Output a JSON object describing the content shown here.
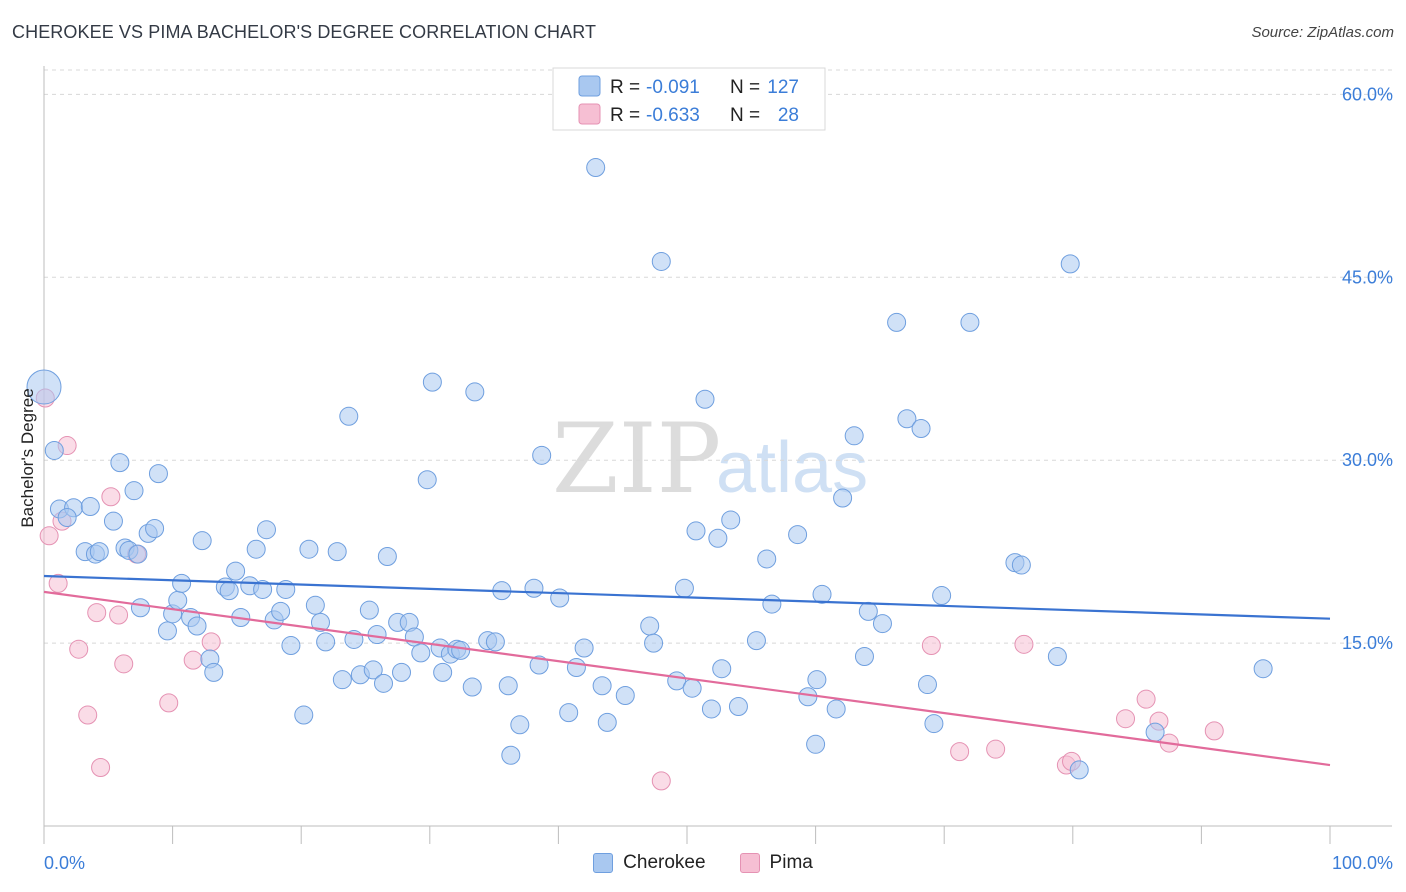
{
  "header": {
    "title": "CHEROKEE VS PIMA BACHELOR'S DEGREE CORRELATION CHART",
    "source": "Source: ZipAtlas.com"
  },
  "legend": {
    "r_label": "R =",
    "n_label": "N =",
    "cherokee": {
      "r": "-0.091",
      "n": "127"
    },
    "pima": {
      "r": "-0.633",
      "n": "28"
    }
  },
  "bottom_legend": {
    "cherokee": "Cherokee",
    "pima": "Pima"
  },
  "colors": {
    "cherokee": "#3a73d1",
    "pima": "#e26b9b",
    "cherokee_fill": "#a9c8f0",
    "pima_fill": "#f6bfd3",
    "tick": "#3b7dd8"
  },
  "watermark": {
    "zip": "ZIP",
    "atlas": "atlas"
  },
  "chart_data": {
    "type": "scatter",
    "title": "CHEROKEE VS PIMA BACHELOR'S DEGREE CORRELATION CHART",
    "xlabel": "",
    "ylabel": "Bachelor's Degree",
    "xlim": [
      0,
      100
    ],
    "ylim": [
      0,
      62
    ],
    "x_tick_labels": [
      "0.0%",
      "100.0%"
    ],
    "y_ticks": [
      15,
      30,
      45,
      60
    ],
    "y_tick_labels": [
      "15.0%",
      "30.0%",
      "45.0%",
      "60.0%"
    ],
    "grid": "horizontal dashed",
    "series": [
      {
        "name": "Cherokee",
        "trend": {
          "x": [
            0,
            100
          ],
          "y": [
            20.5,
            17.0
          ]
        },
        "points": [
          [
            0,
            36,
            "large"
          ],
          [
            0.8,
            30.8
          ],
          [
            1.2,
            26.0
          ],
          [
            2.3,
            26.1
          ],
          [
            1.8,
            25.3
          ],
          [
            3.6,
            26.2
          ],
          [
            3.2,
            22.5
          ],
          [
            4.0,
            22.3
          ],
          [
            4.3,
            22.5
          ],
          [
            5.4,
            25.0
          ],
          [
            5.9,
            29.8
          ],
          [
            7.0,
            27.5
          ],
          [
            6.3,
            22.8
          ],
          [
            6.6,
            22.6
          ],
          [
            8.1,
            24.0
          ],
          [
            8.6,
            24.4
          ],
          [
            8.9,
            28.9
          ],
          [
            7.3,
            22.3
          ],
          [
            7.5,
            17.9
          ],
          [
            9.6,
            16.0
          ],
          [
            10.0,
            17.4
          ],
          [
            10.4,
            18.5
          ],
          [
            10.7,
            19.9
          ],
          [
            11.4,
            17.1
          ],
          [
            11.9,
            16.4
          ],
          [
            12.3,
            23.4
          ],
          [
            12.9,
            13.7
          ],
          [
            13.2,
            12.6
          ],
          [
            14.1,
            19.6
          ],
          [
            14.4,
            19.3
          ],
          [
            14.9,
            20.9
          ],
          [
            15.3,
            17.1
          ],
          [
            16.0,
            19.7
          ],
          [
            16.5,
            22.7
          ],
          [
            17.0,
            19.4
          ],
          [
            17.3,
            24.3
          ],
          [
            17.9,
            16.9
          ],
          [
            18.4,
            17.6
          ],
          [
            18.8,
            19.4
          ],
          [
            19.2,
            14.8
          ],
          [
            20.2,
            9.1
          ],
          [
            20.6,
            22.7
          ],
          [
            21.1,
            18.1
          ],
          [
            21.5,
            16.7
          ],
          [
            21.9,
            15.1
          ],
          [
            22.8,
            22.5
          ],
          [
            23.2,
            12.0
          ],
          [
            23.7,
            33.6
          ],
          [
            24.1,
            15.3
          ],
          [
            24.6,
            12.4
          ],
          [
            25.3,
            17.7
          ],
          [
            25.6,
            12.8
          ],
          [
            25.9,
            15.7
          ],
          [
            26.4,
            11.7
          ],
          [
            26.7,
            22.1
          ],
          [
            27.5,
            16.7
          ],
          [
            27.8,
            12.6
          ],
          [
            28.4,
            16.7
          ],
          [
            28.8,
            15.5
          ],
          [
            29.3,
            14.2
          ],
          [
            29.8,
            28.4
          ],
          [
            30.2,
            36.4
          ],
          [
            30.8,
            14.6
          ],
          [
            31.0,
            12.6
          ],
          [
            31.6,
            14.1
          ],
          [
            32.1,
            14.5
          ],
          [
            32.4,
            14.4
          ],
          [
            33.3,
            11.4
          ],
          [
            33.5,
            35.6
          ],
          [
            34.5,
            15.2
          ],
          [
            35.1,
            15.1
          ],
          [
            35.6,
            19.3
          ],
          [
            36.1,
            11.5
          ],
          [
            36.3,
            5.8
          ],
          [
            37.0,
            8.3
          ],
          [
            38.1,
            19.5
          ],
          [
            38.7,
            30.4
          ],
          [
            38.5,
            13.2
          ],
          [
            40.1,
            18.7
          ],
          [
            40.8,
            9.3
          ],
          [
            41.4,
            13.0
          ],
          [
            42.0,
            14.6
          ],
          [
            42.9,
            54.0
          ],
          [
            43.4,
            11.5
          ],
          [
            43.8,
            8.5
          ],
          [
            45.2,
            10.7
          ],
          [
            47.1,
            16.4
          ],
          [
            47.4,
            15.0
          ],
          [
            48.0,
            46.3
          ],
          [
            49.2,
            11.9
          ],
          [
            49.8,
            19.5
          ],
          [
            50.4,
            11.3
          ],
          [
            50.7,
            24.2
          ],
          [
            51.4,
            35.0
          ],
          [
            51.9,
            9.6
          ],
          [
            52.4,
            23.6
          ],
          [
            52.7,
            12.9
          ],
          [
            53.4,
            25.1
          ],
          [
            54.0,
            9.8
          ],
          [
            55.4,
            15.2
          ],
          [
            56.2,
            21.9
          ],
          [
            56.6,
            18.2
          ],
          [
            58.6,
            23.9
          ],
          [
            59.4,
            10.6
          ],
          [
            60.0,
            6.7
          ],
          [
            60.5,
            19.0
          ],
          [
            60.1,
            12.0
          ],
          [
            61.6,
            9.6
          ],
          [
            62.1,
            26.9
          ],
          [
            63.0,
            32.0
          ],
          [
            63.8,
            13.9
          ],
          [
            64.1,
            17.6
          ],
          [
            65.2,
            16.6
          ],
          [
            66.3,
            41.3
          ],
          [
            67.1,
            33.4
          ],
          [
            68.2,
            32.6
          ],
          [
            68.7,
            11.6
          ],
          [
            69.2,
            8.4
          ],
          [
            69.8,
            18.9
          ],
          [
            72.0,
            41.3
          ],
          [
            75.5,
            21.6
          ],
          [
            76.0,
            21.4
          ],
          [
            78.8,
            13.9
          ],
          [
            79.8,
            46.1
          ],
          [
            80.5,
            4.6
          ],
          [
            86.4,
            7.7
          ],
          [
            94.8,
            12.9
          ]
        ]
      },
      {
        "name": "Pima",
        "trend": {
          "x": [
            0,
            100
          ],
          "y": [
            19.2,
            5.0
          ]
        },
        "points": [
          [
            0.1,
            35.1
          ],
          [
            0.4,
            23.8
          ],
          [
            1.1,
            19.9
          ],
          [
            1.4,
            25.0
          ],
          [
            1.8,
            31.2
          ],
          [
            2.7,
            14.5
          ],
          [
            3.4,
            9.1
          ],
          [
            4.1,
            17.5
          ],
          [
            4.4,
            4.8
          ],
          [
            5.2,
            27.0
          ],
          [
            5.8,
            17.3
          ],
          [
            6.2,
            13.3
          ],
          [
            7.2,
            22.3
          ],
          [
            9.7,
            10.1
          ],
          [
            11.6,
            13.6
          ],
          [
            13.0,
            15.1
          ],
          [
            69.0,
            14.8
          ],
          [
            71.2,
            6.1
          ],
          [
            74.0,
            6.3
          ],
          [
            76.2,
            14.9
          ],
          [
            79.5,
            5.0
          ],
          [
            79.9,
            5.3
          ],
          [
            84.1,
            8.8
          ],
          [
            85.7,
            10.4
          ],
          [
            86.7,
            8.6
          ],
          [
            87.5,
            6.8
          ],
          [
            91.0,
            7.8
          ],
          [
            48.0,
            3.7
          ]
        ]
      }
    ]
  }
}
